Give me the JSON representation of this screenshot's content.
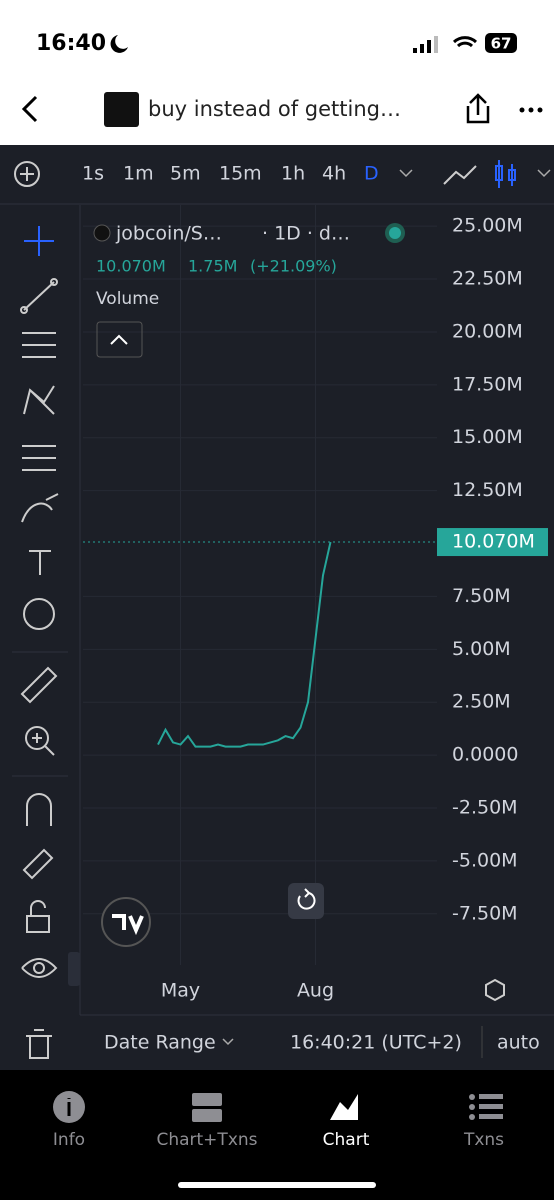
{
  "status_bar": {
    "time": "16:40",
    "battery": "67"
  },
  "header": {
    "title": "buy instead of getting…"
  },
  "toolbar": {
    "intervals": [
      "1s",
      "1m",
      "5m",
      "15m",
      "1h",
      "4h",
      "D"
    ]
  },
  "legend": {
    "symbol": "jobcoin/S…",
    "interval": "· 1D · d…",
    "price": "10.070M",
    "change": "1.75M",
    "change_pct": "(+21.09%)",
    "volume": "Volume"
  },
  "chart_data": {
    "type": "line",
    "color": "#26a69a",
    "categories": [
      null,
      null,
      null,
      "May",
      null,
      null,
      null,
      null,
      null,
      null,
      null,
      null,
      null,
      null,
      null,
      null,
      null,
      null,
      null,
      null,
      null,
      "Aug",
      null,
      null
    ],
    "values": [
      0.5,
      1.2,
      0.6,
      0.5,
      0.9,
      0.4,
      0.4,
      0.4,
      0.5,
      0.4,
      0.4,
      0.4,
      0.5,
      0.5,
      0.5,
      0.6,
      0.7,
      0.9,
      0.8,
      1.3,
      2.5,
      5.5,
      8.5,
      10.07
    ],
    "ylim": [
      -9.92,
      26.0
    ],
    "yticks": [
      {
        "value": 25,
        "label": "25.00M"
      },
      {
        "value": 22.5,
        "label": "22.50M"
      },
      {
        "value": 20,
        "label": "20.00M"
      },
      {
        "value": 17.5,
        "label": "17.50M"
      },
      {
        "value": 15,
        "label": "15.00M"
      },
      {
        "value": 12.5,
        "label": "12.50M"
      },
      {
        "value": 7.5,
        "label": "7.50M"
      },
      {
        "value": 5,
        "label": "5.00M"
      },
      {
        "value": 2.5,
        "label": "2.50M"
      },
      {
        "value": 0,
        "label": "0.0000"
      },
      {
        "value": -2.5,
        "label": "-2.50M"
      },
      {
        "value": -5,
        "label": "-5.00M"
      },
      {
        "value": -7.5,
        "label": "-7.50M"
      }
    ],
    "grid": true,
    "last_price": {
      "value": 10.07,
      "label": "10.070M"
    }
  },
  "footer": {
    "date_range": "Date Range",
    "time": "16:40:21 (UTC+2)",
    "scale": "auto"
  },
  "tabs": [
    "Info",
    "Chart+Txns",
    "Chart",
    "Txns"
  ]
}
